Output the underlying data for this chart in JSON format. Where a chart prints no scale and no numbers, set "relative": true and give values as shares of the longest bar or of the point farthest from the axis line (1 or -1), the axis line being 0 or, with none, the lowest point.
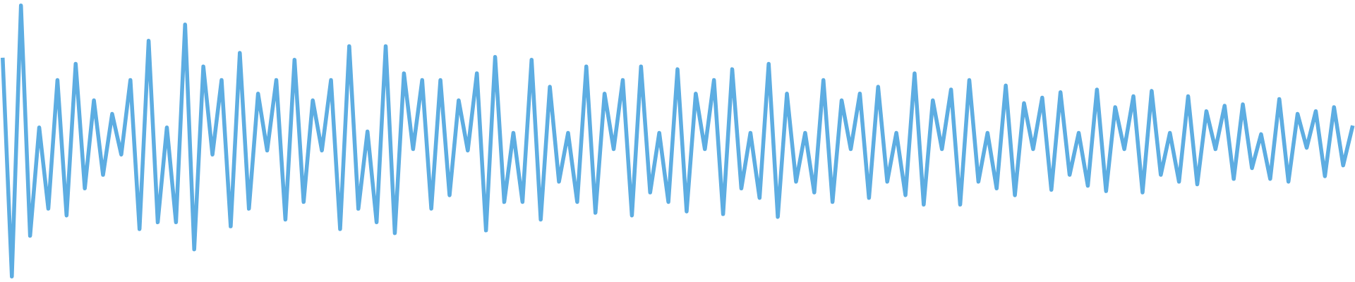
{
  "chart_data": {
    "type": "line",
    "relative": true,
    "grid": false,
    "legend": false,
    "marker": "none",
    "line_style": "solid",
    "categories": [
      null,
      null,
      null,
      null,
      null,
      null,
      null,
      null,
      null,
      null,
      null,
      null,
      null,
      null,
      null,
      null,
      null,
      null,
      null,
      null,
      null,
      null,
      null,
      null,
      null,
      null,
      null,
      null,
      null,
      null,
      null,
      null,
      null,
      null,
      null,
      null,
      null,
      null,
      null,
      null,
      null,
      null,
      null,
      null,
      null,
      null,
      null,
      null,
      null,
      null,
      null,
      null,
      null,
      null,
      null,
      null,
      null,
      null,
      null,
      null,
      null,
      null,
      null,
      null,
      null,
      null,
      null,
      null,
      null,
      null,
      null,
      null,
      null,
      null,
      null,
      null,
      null,
      null,
      null,
      null,
      null,
      null,
      null,
      null,
      null,
      null,
      null,
      null,
      null,
      null,
      null,
      null,
      null,
      null,
      null,
      null,
      null,
      null,
      null,
      null,
      null,
      null,
      null,
      null,
      null,
      null,
      null,
      null,
      null,
      null,
      null,
      null,
      null,
      null,
      null,
      null,
      null,
      null,
      null,
      null,
      null,
      null,
      null,
      null,
      null,
      null,
      null,
      null,
      null,
      null,
      null,
      null,
      null,
      null,
      null,
      null,
      null,
      null,
      null,
      null,
      null,
      null,
      null,
      null,
      null,
      null,
      null,
      null,
      null
    ],
    "series": [
      {
        "color": "#5dade2",
        "values": [
          0.8,
          0,
          1.0,
          0.15,
          0.55,
          0.25,
          0.725,
          0.225,
          0.785,
          0.325,
          0.65,
          0.375,
          0.6,
          0.45,
          0.725,
          0.175,
          0.87,
          0.2,
          0.55,
          0.2,
          0.93,
          0.1,
          0.775,
          0.45,
          0.725,
          0.185,
          0.825,
          0.25,
          0.675,
          0.465,
          0.725,
          0.21,
          0.8,
          0.275,
          0.65,
          0.465,
          0.725,
          0.175,
          0.85,
          0.25,
          0.535,
          0.2,
          0.85,
          0.16,
          0.75,
          0.47,
          0.725,
          0.25,
          0.725,
          0.3,
          0.65,
          0.465,
          0.75,
          0.17,
          0.81,
          0.275,
          0.53,
          0.275,
          0.8,
          0.21,
          0.7,
          0.35,
          0.53,
          0.275,
          0.775,
          0.235,
          0.675,
          0.47,
          0.725,
          0.225,
          0.775,
          0.31,
          0.53,
          0.275,
          0.765,
          0.24,
          0.675,
          0.47,
          0.725,
          0.23,
          0.765,
          0.325,
          0.53,
          0.29,
          0.785,
          0.22,
          0.675,
          0.35,
          0.53,
          0.31,
          0.725,
          0.275,
          0.65,
          0.47,
          0.675,
          0.29,
          0.7,
          0.35,
          0.53,
          0.3,
          0.75,
          0.265,
          0.65,
          0.47,
          0.69,
          0.265,
          0.725,
          0.35,
          0.53,
          0.325,
          0.705,
          0.3,
          0.64,
          0.47,
          0.66,
          0.32,
          0.68,
          0.375,
          0.53,
          0.335,
          0.69,
          0.315,
          0.625,
          0.47,
          0.665,
          0.31,
          0.685,
          0.375,
          0.53,
          0.35,
          0.665,
          0.34,
          0.61,
          0.47,
          0.63,
          0.36,
          0.635,
          0.4,
          0.525,
          0.36,
          0.655,
          0.35,
          0.6,
          0.475,
          0.61,
          0.37,
          0.625,
          0.41,
          0.55
        ]
      }
    ]
  }
}
